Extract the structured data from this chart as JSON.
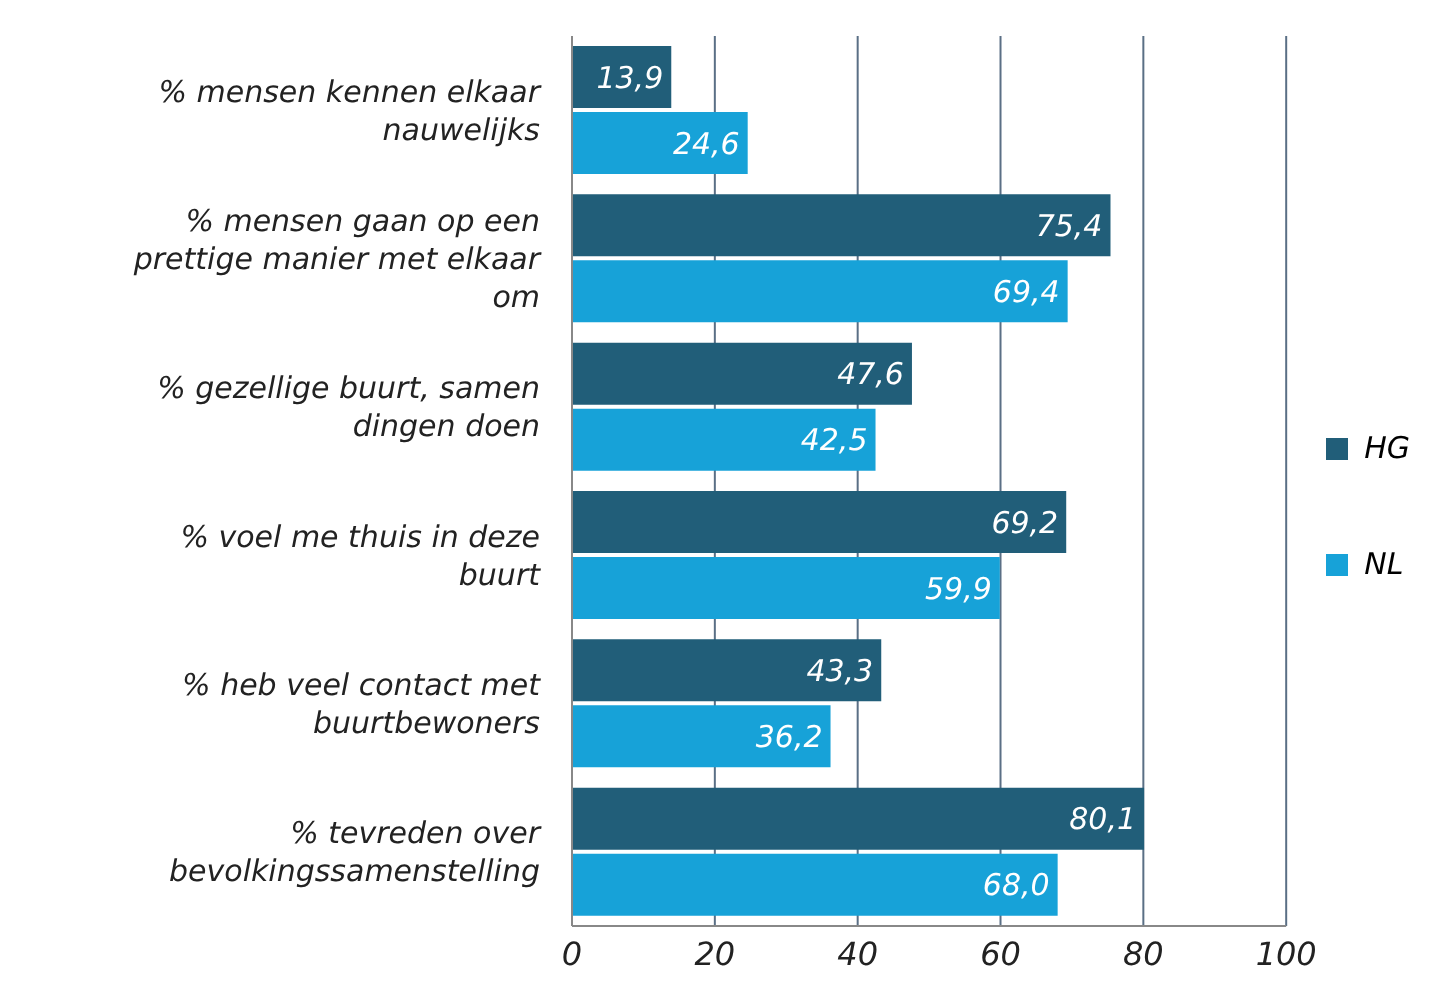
{
  "chart_data": {
    "type": "bar",
    "orientation": "horizontal",
    "categories": [
      "% mensen kennen elkaar nauwelijks",
      "% mensen gaan op een prettige manier met elkaar om",
      "% gezellige buurt, samen dingen doen",
      "% voel me thuis in deze buurt",
      "% heb veel contact met buurtbewoners",
      "% tevreden over bevolkingssamenstelling"
    ],
    "series": [
      {
        "name": "HG",
        "color": "#215e79",
        "values": [
          13.9,
          75.4,
          47.6,
          69.2,
          43.3,
          80.1
        ],
        "value_labels": [
          "13,9",
          "75,4",
          "47,6",
          "69,2",
          "43,3",
          "80,1"
        ]
      },
      {
        "name": "NL",
        "color": "#17a2d8",
        "values": [
          24.6,
          69.4,
          42.5,
          59.9,
          36.2,
          68.0
        ],
        "value_labels": [
          "24,6",
          "69,4",
          "42,5",
          "59,9",
          "36,2",
          "68,0"
        ]
      }
    ],
    "xlim": [
      0,
      100
    ],
    "xticks": [
      0,
      20,
      40,
      60,
      80,
      100
    ],
    "grid": "x",
    "legend": "right"
  }
}
